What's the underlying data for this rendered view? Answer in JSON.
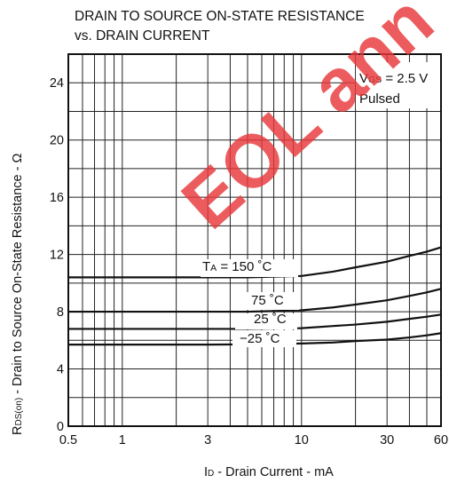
{
  "chart_data": {
    "type": "line",
    "title_lines": [
      "DRAIN TO SOURCE ON-STATE RESISTANCE",
      "vs. DRAIN CURRENT"
    ],
    "xlabel": {
      "main": "I",
      "sub": "D",
      "rest": " - Drain Current - mA"
    },
    "ylabel": {
      "main": "R",
      "sub": "DS(on)",
      "rest": " - Drain to Source On-State Resistance - Ω"
    },
    "x_scale": "log",
    "xlim": [
      0.5,
      60
    ],
    "ylim": [
      0,
      26
    ],
    "x_ticks": [
      0.5,
      1,
      3,
      10,
      30,
      60
    ],
    "x_tick_labels": [
      "0.5",
      "1",
      "3",
      "10",
      "30",
      "60"
    ],
    "y_ticks": [
      0,
      4,
      8,
      12,
      16,
      20,
      24
    ],
    "y_tick_labels": [
      "0",
      "4",
      "8",
      "12",
      "16",
      "20",
      "24"
    ],
    "x_gridlines": [
      0.5,
      0.6,
      0.7,
      0.8,
      0.9,
      1,
      2,
      3,
      4,
      5,
      6,
      7,
      8,
      9,
      10,
      20,
      30,
      40,
      50,
      60
    ],
    "y_gridlines": [
      0,
      2,
      4,
      6,
      8,
      10,
      12,
      14,
      16,
      18,
      20,
      22,
      24,
      26
    ],
    "grid": true,
    "annotation": {
      "line1_main": "V",
      "line1_sub": "GS",
      "line1_rest": " = 2.5 V",
      "line2": "Pulsed"
    },
    "series": [
      {
        "label_main": "T",
        "label_sub": "A",
        "label_rest": " = 150 ˚C",
        "x": [
          0.5,
          1,
          3,
          5,
          10,
          15,
          20,
          30,
          40,
          50,
          60
        ],
        "y": [
          10.4,
          10.4,
          10.4,
          10.4,
          10.5,
          10.8,
          11.1,
          11.5,
          11.9,
          12.2,
          12.5
        ]
      },
      {
        "label_main": "",
        "label_sub": "",
        "label_rest": "75 ˚C",
        "x": [
          0.5,
          1,
          3,
          5,
          10,
          15,
          20,
          30,
          40,
          50,
          60
        ],
        "y": [
          8.0,
          8.0,
          8.0,
          8.0,
          8.1,
          8.3,
          8.5,
          8.8,
          9.1,
          9.35,
          9.6
        ]
      },
      {
        "label_main": "",
        "label_sub": "",
        "label_rest": "25 ˚C",
        "x": [
          0.5,
          1,
          3,
          5,
          10,
          15,
          20,
          30,
          40,
          50,
          60
        ],
        "y": [
          6.8,
          6.8,
          6.8,
          6.8,
          6.85,
          7.0,
          7.1,
          7.3,
          7.5,
          7.65,
          7.8
        ]
      },
      {
        "label_main": "",
        "label_sub": "",
        "label_rest": "−25 ˚C",
        "x": [
          0.5,
          1,
          3,
          5,
          10,
          15,
          20,
          30,
          40,
          50,
          60
        ],
        "y": [
          5.7,
          5.7,
          5.7,
          5.72,
          5.78,
          5.85,
          5.95,
          6.05,
          6.2,
          6.35,
          6.5
        ]
      }
    ]
  },
  "watermark": {
    "text": "EOL ann",
    "color": "#e8383a"
  }
}
